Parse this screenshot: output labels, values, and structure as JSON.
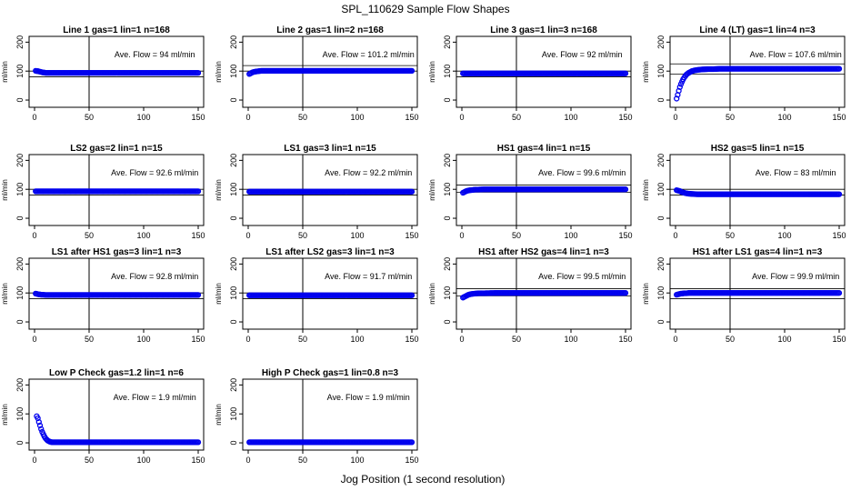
{
  "figure": {
    "title": "SPL_110629  Sample Flow Shapes",
    "xlabel": "Jog Position (1 second resolution)"
  },
  "chart_data": [
    {
      "type": "scatter",
      "title": "Line 1 gas=1 lin=1 n=168",
      "ylabel": "ml/min",
      "annotation": "Ave. Flow = 94  ml/min",
      "xlim": [
        0,
        150
      ],
      "ylim": [
        -25,
        220
      ],
      "xticks": [
        0,
        50,
        100,
        150
      ],
      "yticks": [
        0,
        100,
        200
      ],
      "vline": 50,
      "hlines": [
        100,
        80
      ],
      "series": [
        {
          "name": "",
          "x": [
            1,
            2,
            3,
            4,
            5,
            6,
            7,
            8,
            9,
            10,
            12,
            15,
            20,
            30,
            50,
            75,
            100,
            125,
            150
          ],
          "y": [
            101,
            100,
            100,
            99,
            98,
            97,
            96,
            95,
            95,
            94,
            94,
            94,
            94,
            94,
            94,
            94,
            94,
            94,
            94
          ]
        }
      ]
    },
    {
      "type": "scatter",
      "title": "Line 2 gas=1 lin=2 n=168",
      "ylabel": "ml/min",
      "annotation": "Ave. Flow = 101.2  ml/min",
      "xlim": [
        0,
        150
      ],
      "ylim": [
        -25,
        220
      ],
      "xticks": [
        0,
        50,
        100,
        150
      ],
      "yticks": [
        0,
        100,
        200
      ],
      "vline": 50,
      "hlines": [
        119,
        100
      ],
      "series": [
        {
          "name": "",
          "x": [
            1,
            2,
            3,
            4,
            5,
            6,
            8,
            10,
            12,
            15,
            20,
            30,
            50,
            75,
            100,
            125,
            150
          ],
          "y": [
            90,
            92,
            94,
            96,
            97,
            98,
            99,
            100,
            101,
            101,
            101,
            101,
            101,
            101,
            101,
            101,
            101
          ]
        }
      ]
    },
    {
      "type": "scatter",
      "title": "Line 3 gas=1 lin=3 n=168",
      "ylabel": "ml/min",
      "annotation": "Ave. Flow = 92  ml/min",
      "xlim": [
        0,
        150
      ],
      "ylim": [
        -25,
        220
      ],
      "xticks": [
        0,
        50,
        100,
        150
      ],
      "yticks": [
        0,
        100,
        200
      ],
      "vline": 50,
      "hlines": [
        100,
        80
      ],
      "series": [
        {
          "name": "",
          "x": [
            1,
            2,
            4,
            6,
            8,
            10,
            15,
            20,
            30,
            50,
            75,
            100,
            125,
            150
          ],
          "y": [
            92,
            92,
            92,
            92,
            92,
            92,
            92,
            92,
            92,
            92,
            92,
            92,
            92,
            92
          ]
        }
      ]
    },
    {
      "type": "scatter",
      "title": "Line 4 (LT) gas=1 lin=4 n=3",
      "ylabel": "ml/min",
      "annotation": "Ave. Flow = 107.6  ml/min",
      "xlim": [
        0,
        150
      ],
      "ylim": [
        -25,
        220
      ],
      "xticks": [
        0,
        50,
        100,
        150
      ],
      "yticks": [
        0,
        100,
        200
      ],
      "vline": 50,
      "hlines": [
        125,
        90
      ],
      "series": [
        {
          "name": "",
          "x": [
            1,
            2,
            3,
            4,
            5,
            6,
            7,
            8,
            9,
            10,
            11,
            12,
            13,
            14,
            15,
            16,
            18,
            20,
            22,
            25,
            30,
            35,
            40,
            50,
            75,
            100,
            125,
            150
          ],
          "y": [
            5,
            18,
            32,
            45,
            55,
            64,
            72,
            78,
            83,
            88,
            91,
            94,
            96,
            98,
            100,
            101,
            103,
            104,
            105,
            106,
            107,
            107,
            108,
            108,
            108,
            108,
            108,
            108
          ]
        }
      ]
    },
    {
      "type": "scatter",
      "title": "LS2 gas=2 lin=1 n=15",
      "ylabel": "ml/min",
      "annotation": "Ave. Flow = 92.6  ml/min",
      "xlim": [
        0,
        150
      ],
      "ylim": [
        -25,
        220
      ],
      "xticks": [
        0,
        50,
        100,
        150
      ],
      "yticks": [
        0,
        100,
        200
      ],
      "vline": 50,
      "hlines": [
        100,
        80
      ],
      "series": [
        {
          "name": "",
          "x": [
            1,
            2,
            4,
            6,
            8,
            10,
            15,
            20,
            30,
            50,
            75,
            100,
            125,
            150
          ],
          "y": [
            93,
            93,
            93,
            93,
            93,
            93,
            93,
            93,
            93,
            93,
            93,
            93,
            93,
            93
          ]
        }
      ]
    },
    {
      "type": "scatter",
      "title": "LS1 gas=3 lin=1 n=15",
      "ylabel": "ml/min",
      "annotation": "Ave. Flow = 92.2  ml/min",
      "xlim": [
        0,
        150
      ],
      "ylim": [
        -25,
        220
      ],
      "xticks": [
        0,
        50,
        100,
        150
      ],
      "yticks": [
        0,
        100,
        200
      ],
      "vline": 50,
      "hlines": [
        100,
        80
      ],
      "series": [
        {
          "name": "",
          "x": [
            1,
            2,
            4,
            6,
            8,
            10,
            15,
            20,
            30,
            50,
            75,
            100,
            125,
            150
          ],
          "y": [
            92,
            92,
            92,
            92,
            92,
            92,
            92,
            92,
            92,
            92,
            92,
            92,
            92,
            92
          ]
        }
      ]
    },
    {
      "type": "scatter",
      "title": "HS1 gas=4 lin=1 n=15",
      "ylabel": "ml/min",
      "annotation": "Ave. Flow = 99.6  ml/min",
      "xlim": [
        0,
        150
      ],
      "ylim": [
        -25,
        220
      ],
      "xticks": [
        0,
        50,
        100,
        150
      ],
      "yticks": [
        0,
        100,
        200
      ],
      "vline": 50,
      "hlines": [
        115,
        90
      ],
      "series": [
        {
          "name": "",
          "x": [
            1,
            2,
            3,
            4,
            5,
            6,
            8,
            10,
            12,
            15,
            20,
            30,
            50,
            75,
            100,
            125,
            150
          ],
          "y": [
            88,
            90,
            92,
            94,
            95,
            96,
            97,
            98,
            99,
            99,
            100,
            100,
            100,
            100,
            100,
            100,
            100
          ]
        }
      ]
    },
    {
      "type": "scatter",
      "title": "HS2 gas=5 lin=1 n=15",
      "ylabel": "ml/min",
      "annotation": "Ave. Flow = 83  ml/min",
      "xlim": [
        0,
        150
      ],
      "ylim": [
        -25,
        220
      ],
      "xticks": [
        0,
        50,
        100,
        150
      ],
      "yticks": [
        0,
        100,
        200
      ],
      "vline": 50,
      "hlines": [
        100,
        80
      ],
      "series": [
        {
          "name": "",
          "x": [
            1,
            2,
            3,
            4,
            5,
            6,
            7,
            8,
            9,
            10,
            12,
            15,
            20,
            30,
            50,
            75,
            100,
            125,
            150
          ],
          "y": [
            97,
            96,
            95,
            94,
            92,
            90,
            89,
            88,
            87,
            86,
            85,
            84,
            83,
            83,
            83,
            83,
            83,
            83,
            83
          ]
        }
      ]
    },
    {
      "type": "scatter",
      "title": "LS1 after HS1 gas=3 lin=1 n=3",
      "ylabel": "ml/min",
      "annotation": "Ave. Flow = 92.8  ml/min",
      "xlim": [
        0,
        150
      ],
      "ylim": [
        -25,
        220
      ],
      "xticks": [
        0,
        50,
        100,
        150
      ],
      "yticks": [
        0,
        100,
        200
      ],
      "vline": 50,
      "hlines": [
        100,
        80
      ],
      "series": [
        {
          "name": "",
          "x": [
            1,
            2,
            3,
            4,
            5,
            6,
            8,
            10,
            12,
            15,
            20,
            30,
            50,
            75,
            100,
            125,
            150
          ],
          "y": [
            98,
            97,
            96,
            95,
            95,
            94,
            94,
            93,
            93,
            93,
            93,
            93,
            93,
            93,
            93,
            93,
            93
          ]
        }
      ]
    },
    {
      "type": "scatter",
      "title": "LS1 after LS2 gas=3 lin=1 n=3",
      "ylabel": "ml/min",
      "annotation": "Ave. Flow = 91.7  ml/min",
      "xlim": [
        0,
        150
      ],
      "ylim": [
        -25,
        220
      ],
      "xticks": [
        0,
        50,
        100,
        150
      ],
      "yticks": [
        0,
        100,
        200
      ],
      "vline": 50,
      "hlines": [
        100,
        80
      ],
      "series": [
        {
          "name": "",
          "x": [
            1,
            2,
            4,
            6,
            8,
            10,
            15,
            20,
            30,
            50,
            75,
            100,
            125,
            150
          ],
          "y": [
            92,
            92,
            92,
            92,
            92,
            92,
            92,
            92,
            92,
            92,
            92,
            92,
            92,
            92
          ]
        }
      ]
    },
    {
      "type": "scatter",
      "title": "HS1 after HS2 gas=4 lin=1 n=3",
      "ylabel": "ml/min",
      "annotation": "Ave. Flow = 99.5  ml/min",
      "xlim": [
        0,
        150
      ],
      "ylim": [
        -25,
        220
      ],
      "xticks": [
        0,
        50,
        100,
        150
      ],
      "yticks": [
        0,
        100,
        200
      ],
      "vline": 50,
      "hlines": [
        115,
        90
      ],
      "series": [
        {
          "name": "",
          "x": [
            1,
            2,
            3,
            4,
            5,
            6,
            7,
            8,
            10,
            12,
            15,
            20,
            30,
            50,
            75,
            100,
            125,
            150
          ],
          "y": [
            84,
            86,
            88,
            90,
            92,
            94,
            95,
            96,
            97,
            98,
            99,
            99,
            100,
            100,
            100,
            100,
            100,
            100
          ]
        }
      ]
    },
    {
      "type": "scatter",
      "title": "HS1 after LS1 gas=4 lin=1 n=3",
      "ylabel": "ml/min",
      "annotation": "Ave. Flow = 99.9  ml/min",
      "xlim": [
        0,
        150
      ],
      "ylim": [
        -25,
        220
      ],
      "xticks": [
        0,
        50,
        100,
        150
      ],
      "yticks": [
        0,
        100,
        200
      ],
      "vline": 50,
      "hlines": [
        115,
        80
      ],
      "series": [
        {
          "name": "",
          "x": [
            1,
            2,
            3,
            4,
            5,
            6,
            8,
            10,
            12,
            15,
            20,
            30,
            50,
            75,
            100,
            125,
            150
          ],
          "y": [
            94,
            95,
            96,
            97,
            98,
            98,
            99,
            99,
            100,
            100,
            100,
            100,
            100,
            100,
            100,
            100,
            100
          ]
        }
      ]
    },
    {
      "type": "scatter",
      "title": "Low P Check gas=1.2 lin=1 n=6",
      "ylabel": "ml/min",
      "annotation": "Ave. Flow = 1.9  ml/min",
      "xlim": [
        0,
        150
      ],
      "ylim": [
        -25,
        220
      ],
      "xticks": [
        0,
        50,
        100,
        150
      ],
      "yticks": [
        0,
        100,
        200
      ],
      "vline": 50,
      "hlines": [],
      "series": [
        {
          "name": "",
          "x": [
            2,
            3,
            4,
            5,
            6,
            7,
            8,
            9,
            10,
            11,
            12,
            13,
            14,
            15,
            16,
            18,
            20,
            25,
            30,
            40,
            50,
            75,
            100,
            125,
            150
          ],
          "y": [
            92,
            85,
            72,
            60,
            48,
            38,
            30,
            22,
            16,
            12,
            8,
            6,
            4,
            3,
            2,
            2,
            2,
            2,
            2,
            2,
            2,
            2,
            2,
            2,
            2
          ]
        }
      ]
    },
    {
      "type": "scatter",
      "title": "High P Check gas=1 lin=0.8 n=3",
      "ylabel": "ml/min",
      "annotation": "Ave. Flow = 1.9  ml/min",
      "xlim": [
        0,
        150
      ],
      "ylim": [
        -25,
        220
      ],
      "xticks": [
        0,
        50,
        100,
        150
      ],
      "yticks": [
        0,
        100,
        200
      ],
      "vline": 50,
      "hlines": [],
      "series": [
        {
          "name": "",
          "x": [
            1,
            2,
            4,
            6,
            8,
            10,
            15,
            20,
            30,
            50,
            75,
            100,
            125,
            150
          ],
          "y": [
            2,
            2,
            2,
            2,
            2,
            2,
            2,
            2,
            2,
            2,
            2,
            2,
            2,
            2
          ]
        }
      ]
    }
  ],
  "colors": {
    "points": "#0000ee",
    "axes": "#000000",
    "background": "#ffffff"
  }
}
